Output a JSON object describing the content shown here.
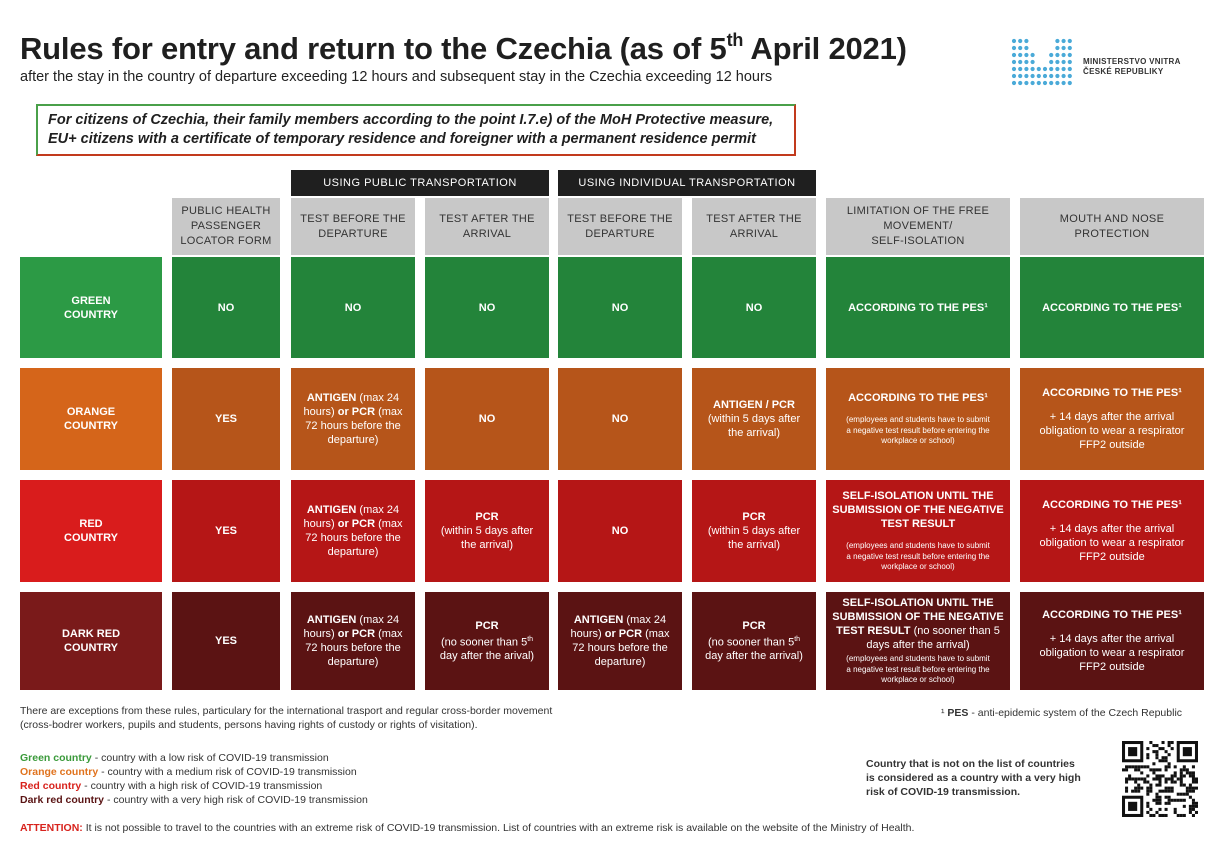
{
  "header": {
    "title_main": "Rules for entry and return to the Czechia (as of 5",
    "title_sup": "th",
    "title_end": " April 2021)",
    "subtitle": "after the stay in the country of departure exceeding 12 hours and subsequent stay in the Czechia exceeding 12 hours"
  },
  "logo": {
    "line1": "MINISTERSTVO VNITRA",
    "line2": "ČESKÉ REPUBLIKY",
    "icon": "ministry-dots-logo"
  },
  "banner": {
    "line1": "For citizens of Czechia, their family members according to the point I.7.e) of the MoH Protective measure,",
    "line2": "EU+ citizens with a certificate of temporary residence and foreigner with a permanent residence permit"
  },
  "groups": {
    "public": "USING PUBLIC TRANSPORTATION",
    "individual": "USING INDIVIDUAL TRANSPORTATION"
  },
  "columns": {
    "plf": [
      "PUBLIC HEALTH",
      "PASSENGER",
      "LOCATOR FORM"
    ],
    "pub_before": [
      "TEST BEFORE THE",
      "DEPARTURE"
    ],
    "pub_after": [
      "TEST AFTER THE",
      "ARRIVAL"
    ],
    "ind_before": [
      "TEST BEFORE THE",
      "DEPARTURE"
    ],
    "ind_after": [
      "TEST AFTER THE",
      "ARRIVAL"
    ],
    "limitation": [
      "LIMITATION OF THE FREE",
      "MOVEMENT/",
      "SELF-ISOLATION"
    ],
    "mouth": [
      "MOUTH AND NOSE",
      "PROTECTION"
    ]
  },
  "rows": {
    "green": {
      "label": [
        "GREEN",
        "COUNTRY"
      ],
      "plf": "NO",
      "pub_before": "NO",
      "pub_after": "NO",
      "ind_before": "NO",
      "ind_after": "NO",
      "limitation": "ACCORDING TO THE PES¹",
      "mouth": "ACCORDING TO THE PES¹"
    },
    "orange": {
      "label": [
        "ORANGE",
        "COUNTRY"
      ],
      "plf": "YES",
      "pub_before": [
        "ANTIGEN",
        " (max 24",
        "hours) ",
        "or PCR",
        " (max",
        "72 hours before the",
        "departure)"
      ],
      "pub_after": "NO",
      "ind_before": "NO",
      "ind_after": [
        "ANTIGEN / PCR",
        "(within 5 days after",
        "the arrival)"
      ],
      "limitation": [
        "ACCORDING TO THE PES¹",
        "(employees and students have to submit",
        "a negative test result before entering the",
        "workplace or school)"
      ],
      "mouth": [
        "ACCORDING TO THE PES¹",
        "+ 14 days after the arrival",
        "obligation to wear a respirator",
        "FFP2 outside"
      ]
    },
    "red": {
      "label": [
        "RED",
        "COUNTRY"
      ],
      "plf": "YES",
      "pub_before": [
        "ANTIGEN",
        " (max 24",
        "hours) ",
        "or PCR",
        " (max",
        "72 hours before the",
        "departure)"
      ],
      "pub_after": [
        "PCR",
        "(within 5 days after",
        "the arrival)"
      ],
      "ind_before": "NO",
      "ind_after": [
        "PCR",
        "(within 5 days after",
        "the arrival)"
      ],
      "limitation": [
        "SELF-ISOLATION UNTIL THE",
        "SUBMISSION OF THE NEGATIVE",
        "TEST RESULT",
        "(employees and students have to submit",
        "a negative test result before entering the",
        "workplace or school)"
      ],
      "mouth": [
        "ACCORDING TO THE PES¹",
        "+ 14 days after the arrival",
        "obligation to wear a respirator",
        "FFP2 outside"
      ]
    },
    "darkred": {
      "label": [
        "DARK RED",
        "COUNTRY"
      ],
      "plf": "YES",
      "pub_before": [
        "ANTIGEN",
        " (max 24",
        "hours) ",
        "or PCR",
        " (max",
        "72 hours before the",
        "departure)"
      ],
      "pub_after": [
        "PCR",
        "(no sooner than 5",
        "th",
        "day after the arival)"
      ],
      "ind_before": [
        "ANTIGEN",
        " (max 24",
        "hours) ",
        "or PCR",
        " (max",
        "72 hours before the",
        "departure)"
      ],
      "ind_after": [
        "PCR",
        "(no sooner than 5",
        "th",
        "day after the arrival)"
      ],
      "limitation": [
        "SELF-ISOLATION UNTIL THE",
        "SUBMISSION OF THE NEGATIVE",
        "TEST RESULT",
        " (no sooner than 5",
        "days after the arrival)",
        "(employees and students have to submit",
        "a negative test result before entering the",
        "workplace or school)"
      ],
      "mouth": [
        "ACCORDING TO THE PES¹",
        "+ 14 days after the arrival",
        "obligation to wear a respirator",
        "FFP2 outside"
      ]
    }
  },
  "footer": {
    "exceptions_line1": "There are exceptions from these rules, particulary for the international trasport and regular cross-border movement",
    "exceptions_line2": "(cross-bodrer workers, pupils and students, persons having rights of custody or rights of visitation).",
    "pes_sup": "¹ ",
    "pes_abbr": "PES",
    "pes_text": " - anti-epidemic system of the Czech Republic",
    "legend": [
      {
        "label": "Green country",
        "text": " - country with a low risk of COVID-19 transmission",
        "color": "#3a9a3a"
      },
      {
        "label": "Orange country",
        "text": " - country with a medium risk of COVID-19 transmission",
        "color": "#e0731e"
      },
      {
        "label": "Red country",
        "text": " - country with a high risk of COVID-19 transmission",
        "color": "#d8231d"
      },
      {
        "label": "Dark red country",
        "text": " - country with a very high risk of COVID-19 transmission",
        "color": "#5a1414"
      }
    ],
    "not_listed": [
      "Country that is not on the list of countries",
      "is considered as a country with a very high",
      "risk of COVID-19 transmission."
    ],
    "attention_label": "ATTENTION:",
    "attention_text": " It is not possible to travel to the countries with an extreme risk of COVID-19 transmission. List of countries with an extreme risk is available on the website of the Ministry of Health.",
    "qr_icon": "qr-code-icon"
  },
  "colors": {
    "green_label": "#2c9a45",
    "green_cell": "#23843a",
    "orange_label": "#d5651a",
    "orange_cell": "#b6551a",
    "red_label": "#d91c1c",
    "red_cell": "#b51616",
    "darkred_label": "#7a1a1a",
    "darkred_cell": "#5b1313",
    "group_head": "#1f1f1f",
    "col_head": "#c8c8c8"
  }
}
